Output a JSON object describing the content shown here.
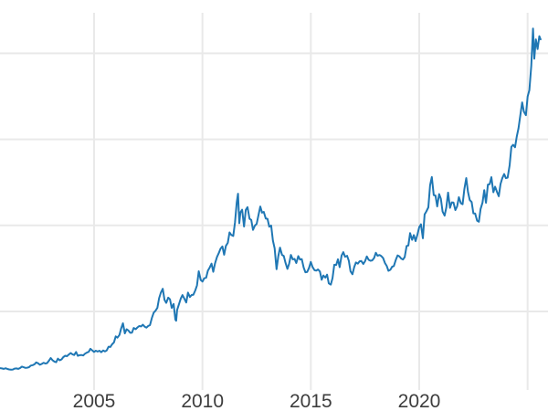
{
  "colors": {
    "line": "#1f77b4",
    "grid": "#e9e9e9",
    "tick_label": "#3d3d3d",
    "background": "#ffffff"
  },
  "chart_data": {
    "type": "line",
    "title": "",
    "xlabel": "",
    "ylabel": "",
    "legend": false,
    "grid": true,
    "line_color": "#1f77b4",
    "x_tick_labels": [
      "2005",
      "2010",
      "2015",
      "2020"
    ],
    "x_tick_years": [
      2005,
      2010,
      2015,
      2020
    ],
    "x_gridline_years": [
      2005,
      2010,
      2015,
      2020,
      2025
    ],
    "y_gridline_values_estimated": [
      800,
      1600,
      2400,
      3200
    ],
    "xlim": [
      2000.66,
      2025.95
    ],
    "ylim_estimated": [
      70,
      3576
    ],
    "points": [
      [
        2000.67,
        273
      ],
      [
        2000.75,
        270
      ],
      [
        2000.83,
        266
      ],
      [
        2000.92,
        272
      ],
      [
        2001.0,
        265
      ],
      [
        2001.08,
        261
      ],
      [
        2001.17,
        258
      ],
      [
        2001.25,
        260
      ],
      [
        2001.33,
        268
      ],
      [
        2001.42,
        270
      ],
      [
        2001.5,
        266
      ],
      [
        2001.58,
        273
      ],
      [
        2001.67,
        287
      ],
      [
        2001.75,
        281
      ],
      [
        2001.83,
        275
      ],
      [
        2001.92,
        277
      ],
      [
        2002.0,
        282
      ],
      [
        2002.08,
        296
      ],
      [
        2002.17,
        301
      ],
      [
        2002.25,
        308
      ],
      [
        2002.33,
        326
      ],
      [
        2002.42,
        318
      ],
      [
        2002.5,
        304
      ],
      [
        2002.58,
        312
      ],
      [
        2002.67,
        323
      ],
      [
        2002.75,
        316
      ],
      [
        2002.83,
        319
      ],
      [
        2002.92,
        342
      ],
      [
        2003.0,
        367
      ],
      [
        2003.08,
        347
      ],
      [
        2003.17,
        334
      ],
      [
        2003.25,
        328
      ],
      [
        2003.33,
        361
      ],
      [
        2003.42,
        346
      ],
      [
        2003.5,
        354
      ],
      [
        2003.58,
        375
      ],
      [
        2003.67,
        388
      ],
      [
        2003.75,
        384
      ],
      [
        2003.83,
        398
      ],
      [
        2003.92,
        414
      ],
      [
        2004.0,
        402
      ],
      [
        2004.08,
        395
      ],
      [
        2004.17,
        423
      ],
      [
        2004.25,
        387
      ],
      [
        2004.33,
        393
      ],
      [
        2004.42,
        395
      ],
      [
        2004.5,
        391
      ],
      [
        2004.58,
        407
      ],
      [
        2004.67,
        418
      ],
      [
        2004.75,
        425
      ],
      [
        2004.83,
        453
      ],
      [
        2004.92,
        437
      ],
      [
        2005.0,
        424
      ],
      [
        2005.08,
        435
      ],
      [
        2005.17,
        427
      ],
      [
        2005.25,
        435
      ],
      [
        2005.33,
        421
      ],
      [
        2005.42,
        437
      ],
      [
        2005.5,
        429
      ],
      [
        2005.58,
        437
      ],
      [
        2005.67,
        472
      ],
      [
        2005.75,
        470
      ],
      [
        2005.83,
        494
      ],
      [
        2005.92,
        513
      ],
      [
        2006.0,
        568
      ],
      [
        2006.08,
        556
      ],
      [
        2006.17,
        582
      ],
      [
        2006.25,
        644
      ],
      [
        2006.33,
        690
      ],
      [
        2006.42,
        596
      ],
      [
        2006.5,
        634
      ],
      [
        2006.58,
        623
      ],
      [
        2006.67,
        601
      ],
      [
        2006.75,
        603
      ],
      [
        2006.83,
        646
      ],
      [
        2006.92,
        635
      ],
      [
        2007.0,
        651
      ],
      [
        2007.08,
        664
      ],
      [
        2007.17,
        661
      ],
      [
        2007.25,
        677
      ],
      [
        2007.33,
        659
      ],
      [
        2007.42,
        650
      ],
      [
        2007.5,
        665
      ],
      [
        2007.58,
        673
      ],
      [
        2007.67,
        742
      ],
      [
        2007.75,
        789
      ],
      [
        2007.83,
        806
      ],
      [
        2007.92,
        833
      ],
      [
        2008.0,
        923
      ],
      [
        2008.08,
        974
      ],
      [
        2008.17,
        1011
      ],
      [
        2008.25,
        909
      ],
      [
        2008.33,
        880
      ],
      [
        2008.42,
        928
      ],
      [
        2008.5,
        913
      ],
      [
        2008.58,
        833
      ],
      [
        2008.67,
        870
      ],
      [
        2008.75,
        724
      ],
      [
        2008.79,
        713
      ],
      [
        2008.83,
        814
      ],
      [
        2008.92,
        869
      ],
      [
        2009.0,
        919
      ],
      [
        2009.08,
        952
      ],
      [
        2009.17,
        916
      ],
      [
        2009.25,
        883
      ],
      [
        2009.33,
        975
      ],
      [
        2009.42,
        934
      ],
      [
        2009.5,
        953
      ],
      [
        2009.58,
        955
      ],
      [
        2009.67,
        995
      ],
      [
        2009.75,
        1043
      ],
      [
        2009.83,
        1174
      ],
      [
        2009.92,
        1092
      ],
      [
        2010.0,
        1078
      ],
      [
        2010.08,
        1108
      ],
      [
        2010.17,
        1113
      ],
      [
        2010.25,
        1179
      ],
      [
        2010.33,
        1207
      ],
      [
        2010.42,
        1244
      ],
      [
        2010.5,
        1169
      ],
      [
        2010.58,
        1246
      ],
      [
        2010.67,
        1307
      ],
      [
        2010.75,
        1342
      ],
      [
        2010.83,
        1383
      ],
      [
        2010.92,
        1405
      ],
      [
        2011.0,
        1327
      ],
      [
        2011.08,
        1409
      ],
      [
        2011.17,
        1438
      ],
      [
        2011.25,
        1535
      ],
      [
        2011.33,
        1512
      ],
      [
        2011.42,
        1502
      ],
      [
        2011.5,
        1628
      ],
      [
        2011.58,
        1813
      ],
      [
        2011.64,
        1895
      ],
      [
        2011.7,
        1620
      ],
      [
        2011.75,
        1720
      ],
      [
        2011.83,
        1746
      ],
      [
        2011.92,
        1590
      ],
      [
        2012.0,
        1744
      ],
      [
        2012.08,
        1770
      ],
      [
        2012.17,
        1662
      ],
      [
        2012.25,
        1651
      ],
      [
        2012.33,
        1558
      ],
      [
        2012.42,
        1598
      ],
      [
        2012.5,
        1614
      ],
      [
        2012.58,
        1691
      ],
      [
        2012.67,
        1776
      ],
      [
        2012.75,
        1719
      ],
      [
        2012.83,
        1726
      ],
      [
        2012.92,
        1664
      ],
      [
        2013.0,
        1661
      ],
      [
        2013.08,
        1588
      ],
      [
        2013.17,
        1598
      ],
      [
        2013.25,
        1459
      ],
      [
        2013.33,
        1387
      ],
      [
        2013.42,
        1192
      ],
      [
        2013.5,
        1314
      ],
      [
        2013.58,
        1394
      ],
      [
        2013.67,
        1326
      ],
      [
        2013.75,
        1316
      ],
      [
        2013.83,
        1253
      ],
      [
        2013.92,
        1196
      ],
      [
        2014.0,
        1244
      ],
      [
        2014.08,
        1326
      ],
      [
        2014.17,
        1284
      ],
      [
        2014.25,
        1288
      ],
      [
        2014.33,
        1250
      ],
      [
        2014.42,
        1315
      ],
      [
        2014.5,
        1282
      ],
      [
        2014.58,
        1287
      ],
      [
        2014.67,
        1208
      ],
      [
        2014.75,
        1164
      ],
      [
        2014.83,
        1167
      ],
      [
        2014.92,
        1206
      ],
      [
        2015.0,
        1260
      ],
      [
        2015.08,
        1214
      ],
      [
        2015.17,
        1183
      ],
      [
        2015.25,
        1180
      ],
      [
        2015.33,
        1191
      ],
      [
        2015.42,
        1171
      ],
      [
        2015.5,
        1095
      ],
      [
        2015.58,
        1135
      ],
      [
        2015.67,
        1114
      ],
      [
        2015.75,
        1142
      ],
      [
        2015.83,
        1061
      ],
      [
        2015.92,
        1050
      ],
      [
        2016.0,
        1111
      ],
      [
        2016.08,
        1234
      ],
      [
        2016.17,
        1232
      ],
      [
        2016.25,
        1285
      ],
      [
        2016.33,
        1212
      ],
      [
        2016.42,
        1320
      ],
      [
        2016.5,
        1351
      ],
      [
        2016.58,
        1309
      ],
      [
        2016.67,
        1317
      ],
      [
        2016.75,
        1272
      ],
      [
        2016.83,
        1173
      ],
      [
        2016.92,
        1146
      ],
      [
        2017.0,
        1212
      ],
      [
        2017.08,
        1255
      ],
      [
        2017.17,
        1244
      ],
      [
        2017.25,
        1266
      ],
      [
        2017.33,
        1269
      ],
      [
        2017.42,
        1242
      ],
      [
        2017.5,
        1267
      ],
      [
        2017.58,
        1311
      ],
      [
        2017.67,
        1280
      ],
      [
        2017.75,
        1271
      ],
      [
        2017.83,
        1275
      ],
      [
        2017.92,
        1297
      ],
      [
        2018.0,
        1345
      ],
      [
        2018.08,
        1318
      ],
      [
        2018.17,
        1325
      ],
      [
        2018.25,
        1315
      ],
      [
        2018.33,
        1298
      ],
      [
        2018.42,
        1250
      ],
      [
        2018.5,
        1224
      ],
      [
        2018.58,
        1178
      ],
      [
        2018.67,
        1187
      ],
      [
        2018.75,
        1215
      ],
      [
        2018.83,
        1222
      ],
      [
        2018.92,
        1281
      ],
      [
        2019.0,
        1321
      ],
      [
        2019.08,
        1313
      ],
      [
        2019.17,
        1292
      ],
      [
        2019.25,
        1283
      ],
      [
        2019.33,
        1305
      ],
      [
        2019.42,
        1409
      ],
      [
        2019.5,
        1413
      ],
      [
        2019.58,
        1528
      ],
      [
        2019.67,
        1466
      ],
      [
        2019.75,
        1510
      ],
      [
        2019.83,
        1454
      ],
      [
        2019.92,
        1517
      ],
      [
        2020.0,
        1584
      ],
      [
        2020.08,
        1610
      ],
      [
        2020.17,
        1480
      ],
      [
        2020.25,
        1702
      ],
      [
        2020.33,
        1730
      ],
      [
        2020.42,
        1768
      ],
      [
        2020.5,
        1974
      ],
      [
        2020.58,
        2050
      ],
      [
        2020.67,
        1882
      ],
      [
        2020.75,
        1878
      ],
      [
        2020.83,
        1777
      ],
      [
        2020.92,
        1891
      ],
      [
        2021.0,
        1848
      ],
      [
        2021.08,
        1728
      ],
      [
        2021.17,
        1691
      ],
      [
        2021.25,
        1768
      ],
      [
        2021.33,
        1905
      ],
      [
        2021.42,
        1763
      ],
      [
        2021.5,
        1814
      ],
      [
        2021.58,
        1812
      ],
      [
        2021.67,
        1743
      ],
      [
        2021.75,
        1777
      ],
      [
        2021.83,
        1862
      ],
      [
        2021.92,
        1806
      ],
      [
        2022.0,
        1797
      ],
      [
        2022.08,
        1936
      ],
      [
        2022.17,
        2040
      ],
      [
        2022.25,
        1911
      ],
      [
        2022.33,
        1837
      ],
      [
        2022.42,
        1817
      ],
      [
        2022.5,
        1712
      ],
      [
        2022.58,
        1711
      ],
      [
        2022.67,
        1644
      ],
      [
        2022.75,
        1634
      ],
      [
        2022.83,
        1753
      ],
      [
        2022.92,
        1812
      ],
      [
        2023.0,
        1928
      ],
      [
        2023.08,
        1811
      ],
      [
        2023.17,
        1980
      ],
      [
        2023.25,
        1983
      ],
      [
        2023.33,
        2048
      ],
      [
        2023.42,
        1908
      ],
      [
        2023.5,
        1960
      ],
      [
        2023.58,
        1915
      ],
      [
        2023.67,
        1871
      ],
      [
        2023.75,
        1984
      ],
      [
        2023.83,
        2038
      ],
      [
        2023.92,
        2078
      ],
      [
        2024.0,
        2039
      ],
      [
        2024.08,
        2044
      ],
      [
        2024.17,
        2160
      ],
      [
        2024.25,
        2330
      ],
      [
        2024.33,
        2350
      ],
      [
        2024.42,
        2327
      ],
      [
        2024.5,
        2426
      ],
      [
        2024.58,
        2503
      ],
      [
        2024.67,
        2630
      ],
      [
        2024.75,
        2744
      ],
      [
        2024.83,
        2657
      ],
      [
        2024.92,
        2625
      ],
      [
        2025.0,
        2798
      ],
      [
        2025.08,
        2858
      ],
      [
        2025.17,
        3085
      ],
      [
        2025.25,
        3430
      ],
      [
        2025.31,
        3150
      ],
      [
        2025.38,
        3330
      ],
      [
        2025.46,
        3240
      ],
      [
        2025.54,
        3360
      ],
      [
        2025.6,
        3330
      ]
    ]
  }
}
